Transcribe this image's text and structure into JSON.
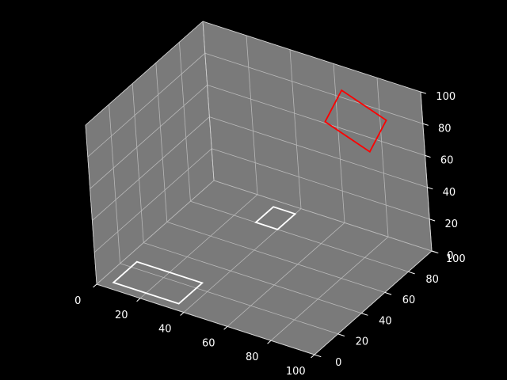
{
  "chart_data": {
    "type": "3d-wireframe",
    "title": "",
    "xlabel": "",
    "ylabel": "",
    "zlabel": "",
    "xlim": [
      0,
      100
    ],
    "ylim": [
      0,
      100
    ],
    "zlim": [
      0,
      100
    ],
    "x_ticks": [
      "0",
      "20",
      "40",
      "60",
      "80",
      "100"
    ],
    "y_ticks": [
      "0",
      "20",
      "40",
      "60",
      "80",
      "100"
    ],
    "z_ticks": [
      "0",
      "20",
      "40",
      "60",
      "80",
      "100"
    ],
    "grid": true,
    "pane_color": "#7a7a7a",
    "grid_color": "#b8b8b8",
    "series": [
      {
        "style": "white",
        "color": "#ffffff",
        "points": [
          [
            5,
            5,
            0
          ],
          [
            35,
            5,
            0
          ],
          [
            35,
            25,
            0
          ],
          [
            5,
            25,
            0
          ]
        ]
      },
      {
        "style": "white",
        "color": "#ffffff",
        "points": [
          [
            30,
            80,
            0
          ],
          [
            40,
            80,
            0
          ],
          [
            40,
            95,
            0
          ],
          [
            30,
            95,
            0
          ]
        ]
      },
      {
        "style": "red",
        "color": "#ff0000",
        "points": [
          [
            60,
            90,
            70
          ],
          [
            60,
            105,
            80
          ],
          [
            80,
            105,
            70
          ],
          [
            80,
            90,
            60
          ]
        ]
      }
    ]
  }
}
